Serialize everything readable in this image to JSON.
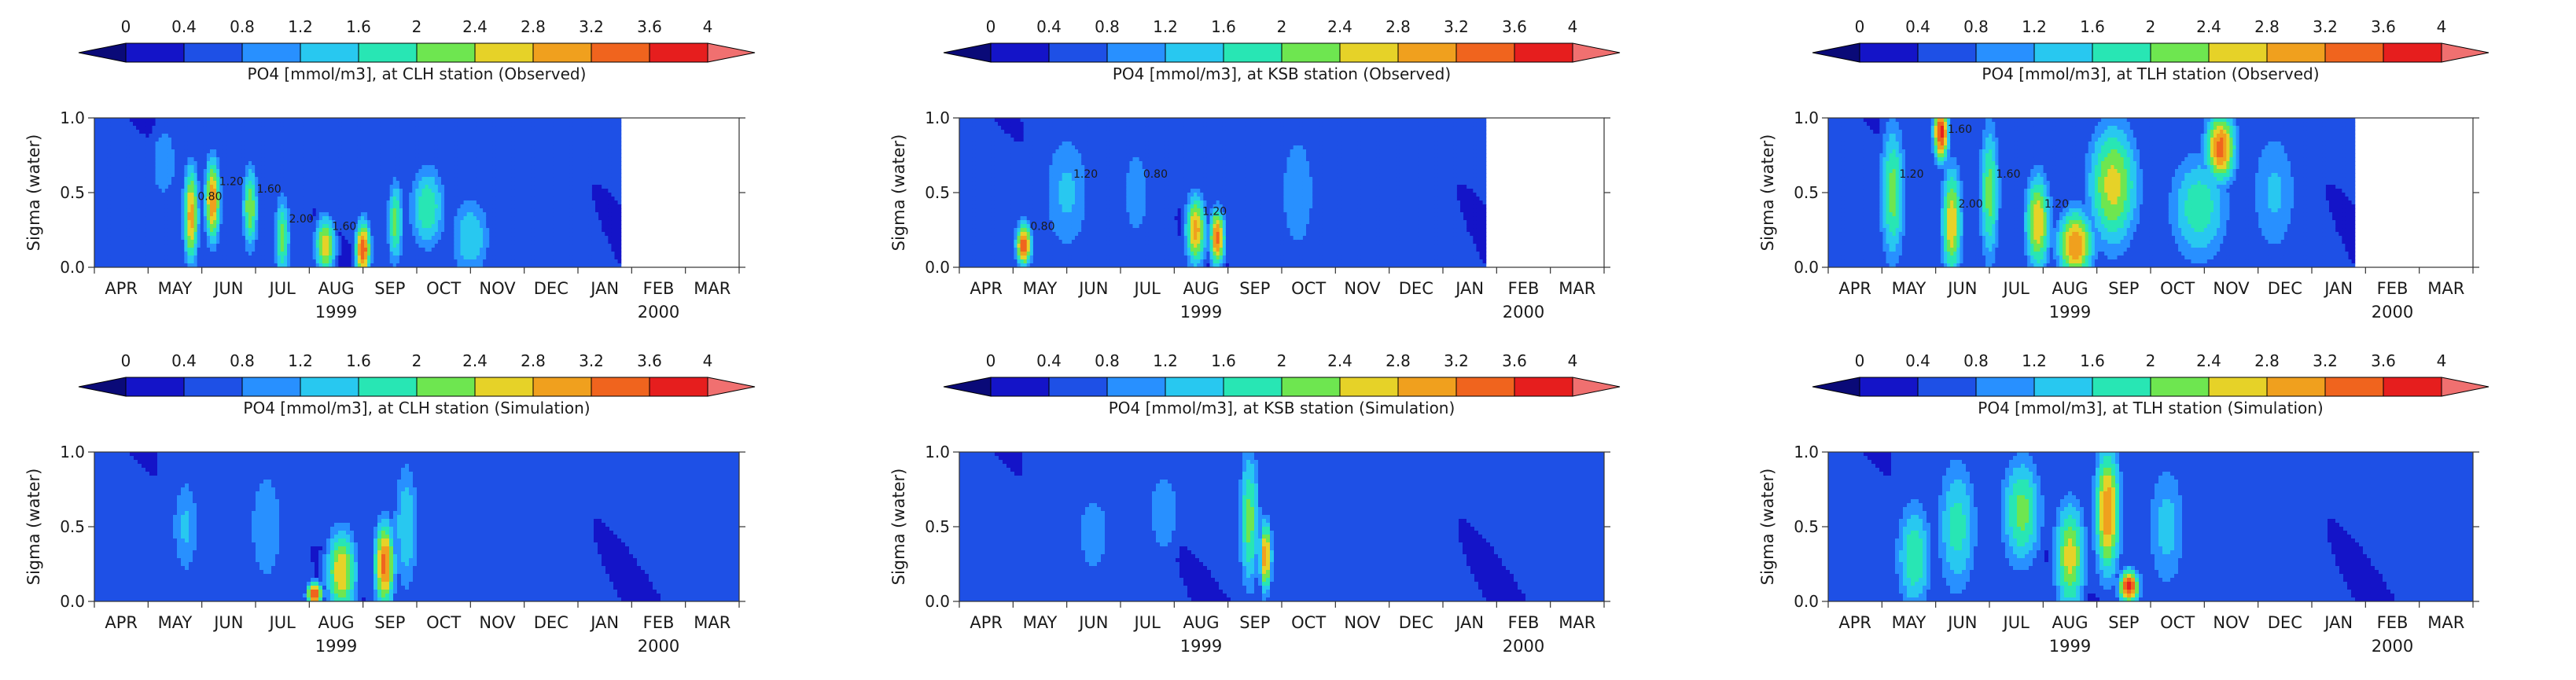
{
  "colorbar": {
    "ticks": [
      "0",
      "0.4",
      "0.8",
      "1.2",
      "1.6",
      "2",
      "2.4",
      "2.8",
      "3.2",
      "3.6",
      "4"
    ],
    "colors": [
      "#0a0a78",
      "#1414c8",
      "#1e50e6",
      "#2890ff",
      "#28c8f0",
      "#28e6b4",
      "#6ee650",
      "#e6d228",
      "#f0a01e",
      "#f0641e",
      "#e61e1e",
      "#f07070"
    ]
  },
  "chart_data": [
    {
      "type": "heatmap",
      "panel": "clh-observed",
      "title": "PO4 [mmol/m3], at CLH station (Observed)",
      "ylabel": "Sigma (water)",
      "ylim": [
        0.0,
        1.0
      ],
      "yticks": [
        "0.0",
        "0.5",
        "1.0"
      ],
      "categories": [
        "APR",
        "MAY",
        "JUN",
        "JUL",
        "AUG",
        "SEP",
        "OCT",
        "NOV",
        "DEC",
        "JAN",
        "FEB",
        "MAR"
      ],
      "year_labels": [
        "1999",
        "2000"
      ],
      "data_end_month": 9.8,
      "contour_labels": [
        "0.80",
        "1.20",
        "1.60",
        "2.00",
        "1.60"
      ],
      "hotspots": [
        {
          "x": 1.8,
          "y": 0.35,
          "v": 3.0,
          "sx": 0.15,
          "sy": 0.35
        },
        {
          "x": 2.2,
          "y": 0.45,
          "v": 3.2,
          "sx": 0.15,
          "sy": 0.3
        },
        {
          "x": 2.9,
          "y": 0.4,
          "v": 2.4,
          "sx": 0.15,
          "sy": 0.3
        },
        {
          "x": 3.5,
          "y": 0.2,
          "v": 2.2,
          "sx": 0.15,
          "sy": 0.3
        },
        {
          "x": 4.3,
          "y": 0.15,
          "v": 2.8,
          "sx": 0.2,
          "sy": 0.2
        },
        {
          "x": 5.0,
          "y": 0.12,
          "v": 3.6,
          "sx": 0.15,
          "sy": 0.2
        },
        {
          "x": 5.6,
          "y": 0.3,
          "v": 2.2,
          "sx": 0.15,
          "sy": 0.3
        },
        {
          "x": 6.2,
          "y": 0.4,
          "v": 2.0,
          "sx": 0.35,
          "sy": 0.3
        },
        {
          "x": 7.0,
          "y": 0.2,
          "v": 1.6,
          "sx": 0.4,
          "sy": 0.3
        },
        {
          "x": 1.3,
          "y": 0.7,
          "v": 1.2,
          "sx": 0.3,
          "sy": 0.3
        }
      ]
    },
    {
      "type": "heatmap",
      "panel": "ksb-observed",
      "title": "PO4 [mmol/m3], at KSB station (Observed)",
      "ylabel": "Sigma (water)",
      "ylim": [
        0.0,
        1.0
      ],
      "yticks": [
        "0.0",
        "0.5",
        "1.0"
      ],
      "categories": [
        "APR",
        "MAY",
        "JUN",
        "JUL",
        "AUG",
        "SEP",
        "OCT",
        "NOV",
        "DEC",
        "JAN",
        "FEB",
        "MAR"
      ],
      "year_labels": [
        "1999",
        "2000"
      ],
      "data_end_month": 9.8,
      "contour_labels": [
        "0.80",
        "1.20",
        "0.80",
        "1.20"
      ],
      "hotspots": [
        {
          "x": 1.2,
          "y": 0.15,
          "v": 3.6,
          "sx": 0.15,
          "sy": 0.15
        },
        {
          "x": 2.0,
          "y": 0.5,
          "v": 1.3,
          "sx": 0.5,
          "sy": 0.5
        },
        {
          "x": 3.3,
          "y": 0.5,
          "v": 1.0,
          "sx": 0.4,
          "sy": 0.5
        },
        {
          "x": 4.4,
          "y": 0.25,
          "v": 3.0,
          "sx": 0.2,
          "sy": 0.25
        },
        {
          "x": 4.8,
          "y": 0.2,
          "v": 3.4,
          "sx": 0.15,
          "sy": 0.2
        },
        {
          "x": 6.3,
          "y": 0.5,
          "v": 1.2,
          "sx": 0.4,
          "sy": 0.5
        }
      ]
    },
    {
      "type": "heatmap",
      "panel": "tlh-observed",
      "title": "PO4 [mmol/m3], at TLH station (Observed)",
      "ylabel": "Sigma (water)",
      "ylim": [
        0.0,
        1.0
      ],
      "yticks": [
        "0.0",
        "0.5",
        "1.0"
      ],
      "categories": [
        "APR",
        "MAY",
        "JUN",
        "JUL",
        "AUG",
        "SEP",
        "OCT",
        "NOV",
        "DEC",
        "JAN",
        "FEB",
        "MAR"
      ],
      "year_labels": [
        "1999",
        "2000"
      ],
      "data_end_month": 9.8,
      "contour_labels": [
        "1.20",
        "1.60",
        "2.00",
        "1.60",
        "1.20"
      ],
      "hotspots": [
        {
          "x": 1.2,
          "y": 0.5,
          "v": 2.2,
          "sx": 0.25,
          "sy": 0.5
        },
        {
          "x": 2.1,
          "y": 0.9,
          "v": 3.8,
          "sx": 0.15,
          "sy": 0.2
        },
        {
          "x": 2.3,
          "y": 0.3,
          "v": 2.8,
          "sx": 0.2,
          "sy": 0.4
        },
        {
          "x": 3.0,
          "y": 0.5,
          "v": 2.2,
          "sx": 0.2,
          "sy": 0.5
        },
        {
          "x": 3.9,
          "y": 0.3,
          "v": 2.8,
          "sx": 0.25,
          "sy": 0.35
        },
        {
          "x": 4.6,
          "y": 0.15,
          "v": 3.2,
          "sx": 0.35,
          "sy": 0.25
        },
        {
          "x": 5.3,
          "y": 0.55,
          "v": 2.6,
          "sx": 0.5,
          "sy": 0.45
        },
        {
          "x": 7.3,
          "y": 0.8,
          "v": 3.4,
          "sx": 0.3,
          "sy": 0.25
        },
        {
          "x": 6.9,
          "y": 0.4,
          "v": 1.9,
          "sx": 0.6,
          "sy": 0.4
        },
        {
          "x": 8.3,
          "y": 0.5,
          "v": 1.3,
          "sx": 0.5,
          "sy": 0.5
        }
      ]
    },
    {
      "type": "heatmap",
      "panel": "clh-simulation",
      "title": "PO4 [mmol/m3], at CLH station (Simulation)",
      "ylabel": "Sigma (water)",
      "ylim": [
        0.0,
        1.0
      ],
      "yticks": [
        "0.0",
        "0.5",
        "1.0"
      ],
      "categories": [
        "APR",
        "MAY",
        "JUN",
        "JUL",
        "AUG",
        "SEP",
        "OCT",
        "NOV",
        "DEC",
        "JAN",
        "FEB",
        "MAR"
      ],
      "year_labels": [
        "1999",
        "2000"
      ],
      "data_end_month": 12.0,
      "contour_labels": [],
      "hotspots": [
        {
          "x": 1.7,
          "y": 0.5,
          "v": 1.3,
          "sx": 0.3,
          "sy": 0.4
        },
        {
          "x": 3.2,
          "y": 0.5,
          "v": 1.2,
          "sx": 0.4,
          "sy": 0.5
        },
        {
          "x": 4.6,
          "y": 0.2,
          "v": 2.8,
          "sx": 0.3,
          "sy": 0.3
        },
        {
          "x": 5.4,
          "y": 0.25,
          "v": 3.4,
          "sx": 0.2,
          "sy": 0.3
        },
        {
          "x": 4.1,
          "y": 0.05,
          "v": 3.8,
          "sx": 0.15,
          "sy": 0.08
        },
        {
          "x": 5.8,
          "y": 0.5,
          "v": 1.6,
          "sx": 0.25,
          "sy": 0.5
        }
      ]
    },
    {
      "type": "heatmap",
      "panel": "ksb-simulation",
      "title": "PO4 [mmol/m3], at KSB station (Simulation)",
      "ylabel": "Sigma (water)",
      "ylim": [
        0.0,
        1.0
      ],
      "yticks": [
        "0.0",
        "0.5",
        "1.0"
      ],
      "categories": [
        "APR",
        "MAY",
        "JUN",
        "JUL",
        "AUG",
        "SEP",
        "OCT",
        "NOV",
        "DEC",
        "JAN",
        "FEB",
        "MAR"
      ],
      "year_labels": [
        "1999",
        "2000"
      ],
      "data_end_month": 12.0,
      "contour_labels": [],
      "hotspots": [
        {
          "x": 2.5,
          "y": 0.45,
          "v": 1.0,
          "sx": 0.5,
          "sy": 0.45
        },
        {
          "x": 3.8,
          "y": 0.6,
          "v": 1.1,
          "sx": 0.4,
          "sy": 0.4
        },
        {
          "x": 5.4,
          "y": 0.55,
          "v": 2.2,
          "sx": 0.2,
          "sy": 0.5
        },
        {
          "x": 5.7,
          "y": 0.3,
          "v": 3.2,
          "sx": 0.12,
          "sy": 0.25
        }
      ]
    },
    {
      "type": "heatmap",
      "panel": "tlh-simulation",
      "title": "PO4 [mmol/m3], at TLH station (Simulation)",
      "ylabel": "Sigma (water)",
      "ylim": [
        0.0,
        1.0
      ],
      "yticks": [
        "0.0",
        "0.5",
        "1.0"
      ],
      "categories": [
        "APR",
        "MAY",
        "JUN",
        "JUL",
        "AUG",
        "SEP",
        "OCT",
        "NOV",
        "DEC",
        "JAN",
        "FEB",
        "MAR"
      ],
      "year_labels": [
        "1999",
        "2000"
      ],
      "data_end_month": 12.0,
      "contour_labels": [],
      "hotspots": [
        {
          "x": 1.6,
          "y": 0.3,
          "v": 2.0,
          "sx": 0.35,
          "sy": 0.4
        },
        {
          "x": 2.4,
          "y": 0.5,
          "v": 1.8,
          "sx": 0.4,
          "sy": 0.5
        },
        {
          "x": 3.6,
          "y": 0.6,
          "v": 2.2,
          "sx": 0.4,
          "sy": 0.4
        },
        {
          "x": 4.5,
          "y": 0.3,
          "v": 2.6,
          "sx": 0.3,
          "sy": 0.4
        },
        {
          "x": 5.2,
          "y": 0.6,
          "v": 3.2,
          "sx": 0.25,
          "sy": 0.45
        },
        {
          "x": 5.6,
          "y": 0.1,
          "v": 3.8,
          "sx": 0.2,
          "sy": 0.12
        },
        {
          "x": 6.3,
          "y": 0.5,
          "v": 1.4,
          "sx": 0.4,
          "sy": 0.5
        }
      ]
    }
  ]
}
